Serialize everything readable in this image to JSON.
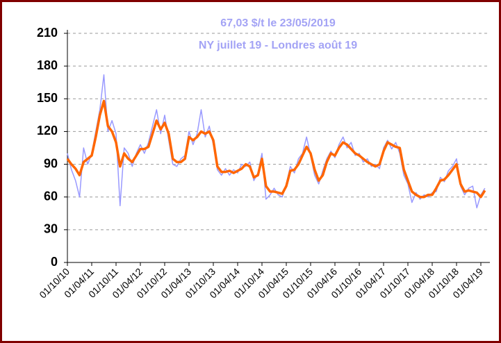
{
  "chart_data": {
    "type": "line",
    "title": "67,03 $/t le 23/05/2019",
    "subtitle": "NY juillet 19 - Londres août 19",
    "x": [
      "01/10/10",
      "01/11/10",
      "01/12/10",
      "01/01/11",
      "01/02/11",
      "01/03/11",
      "01/04/11",
      "01/05/11",
      "01/06/11",
      "01/07/11",
      "01/08/11",
      "01/09/11",
      "01/10/11",
      "01/11/11",
      "01/12/11",
      "01/01/12",
      "01/02/12",
      "01/03/12",
      "01/04/12",
      "01/05/12",
      "01/06/12",
      "01/07/12",
      "01/08/12",
      "01/09/12",
      "01/10/12",
      "01/11/12",
      "01/12/12",
      "01/01/13",
      "01/02/13",
      "01/03/13",
      "01/04/13",
      "01/05/13",
      "01/06/13",
      "01/07/13",
      "01/08/13",
      "01/09/13",
      "01/10/13",
      "01/11/13",
      "01/12/13",
      "01/01/14",
      "01/02/14",
      "01/03/14",
      "01/04/14",
      "01/05/14",
      "01/06/14",
      "01/07/14",
      "01/08/14",
      "01/09/14",
      "01/10/14",
      "01/11/14",
      "01/12/14",
      "01/01/15",
      "01/02/15",
      "01/03/15",
      "01/04/15",
      "01/05/15",
      "01/06/15",
      "01/07/15",
      "01/08/15",
      "01/09/15",
      "01/10/15",
      "01/11/15",
      "01/12/15",
      "01/01/16",
      "01/02/16",
      "01/03/16",
      "01/04/16",
      "01/05/16",
      "01/06/16",
      "01/07/16",
      "01/08/16",
      "01/09/16",
      "01/10/16",
      "01/11/16",
      "01/12/16",
      "01/01/17",
      "01/02/17",
      "01/03/17",
      "01/04/17",
      "01/05/17",
      "01/06/17",
      "01/07/17",
      "01/08/17",
      "01/09/17",
      "01/10/17",
      "01/11/17",
      "01/12/17",
      "01/01/18",
      "01/02/18",
      "01/03/18",
      "01/04/18",
      "01/05/18",
      "01/06/18",
      "01/07/18",
      "01/08/18",
      "01/09/18",
      "01/10/18",
      "01/11/18",
      "01/12/18",
      "01/01/19",
      "01/02/19",
      "01/03/19",
      "01/04/19",
      "01/05/19"
    ],
    "xticks": [
      "01/10/10",
      "01/04/11",
      "01/10/11",
      "01/04/12",
      "01/10/12",
      "01/04/13",
      "01/10/13",
      "01/04/14",
      "01/10/14",
      "01/04/15",
      "01/10/15",
      "01/04/16",
      "01/10/16",
      "01/04/17",
      "01/10/17",
      "01/04/18",
      "01/10/18",
      "01/04/19"
    ],
    "series": [
      {
        "color": "#9999ff",
        "values": [
          100,
          85,
          75,
          60,
          105,
          90,
          100,
          120,
          140,
          172,
          120,
          130,
          118,
          52,
          105,
          100,
          88,
          100,
          108,
          100,
          110,
          125,
          140,
          118,
          135,
          112,
          90,
          88,
          95,
          98,
          120,
          108,
          118,
          140,
          115,
          125,
          108,
          85,
          80,
          86,
          80,
          85,
          82,
          90,
          88,
          92,
          75,
          82,
          100,
          58,
          62,
          68,
          62,
          60,
          72,
          88,
          82,
          95,
          100,
          115,
          98,
          80,
          72,
          84,
          95,
          102,
          96,
          108,
          115,
          105,
          110,
          98,
          100,
          92,
          95,
          88,
          90,
          86,
          105,
          112,
          104,
          110,
          100,
          80,
          72,
          55,
          64,
          58,
          62,
          60,
          64,
          65,
          78,
          74,
          84,
          88,
          95,
          70,
          62,
          68,
          70,
          50,
          62,
          68
        ]
      },
      {
        "color": "#ff6600",
        "values": [
          95,
          90,
          86,
          80,
          92,
          95,
          98,
          115,
          135,
          148,
          125,
          120,
          110,
          88,
          100,
          95,
          92,
          98,
          104,
          104,
          106,
          118,
          130,
          122,
          128,
          118,
          95,
          92,
          92,
          95,
          115,
          112,
          115,
          120,
          118,
          120,
          112,
          88,
          83,
          83,
          84,
          82,
          84,
          86,
          90,
          88,
          78,
          80,
          95,
          70,
          65,
          65,
          64,
          63,
          70,
          84,
          85,
          90,
          98,
          106,
          100,
          85,
          75,
          80,
          92,
          100,
          98,
          105,
          110,
          108,
          104,
          100,
          98,
          95,
          92,
          90,
          88,
          90,
          102,
          110,
          108,
          106,
          105,
          85,
          75,
          65,
          62,
          60,
          60,
          62,
          62,
          68,
          75,
          76,
          80,
          85,
          90,
          72,
          65,
          66,
          65,
          64,
          60,
          66
        ]
      }
    ],
    "ylim": [
      0,
      210
    ],
    "yticks": [
      0,
      30,
      60,
      90,
      120,
      150,
      180,
      210
    ],
    "grid": true
  }
}
